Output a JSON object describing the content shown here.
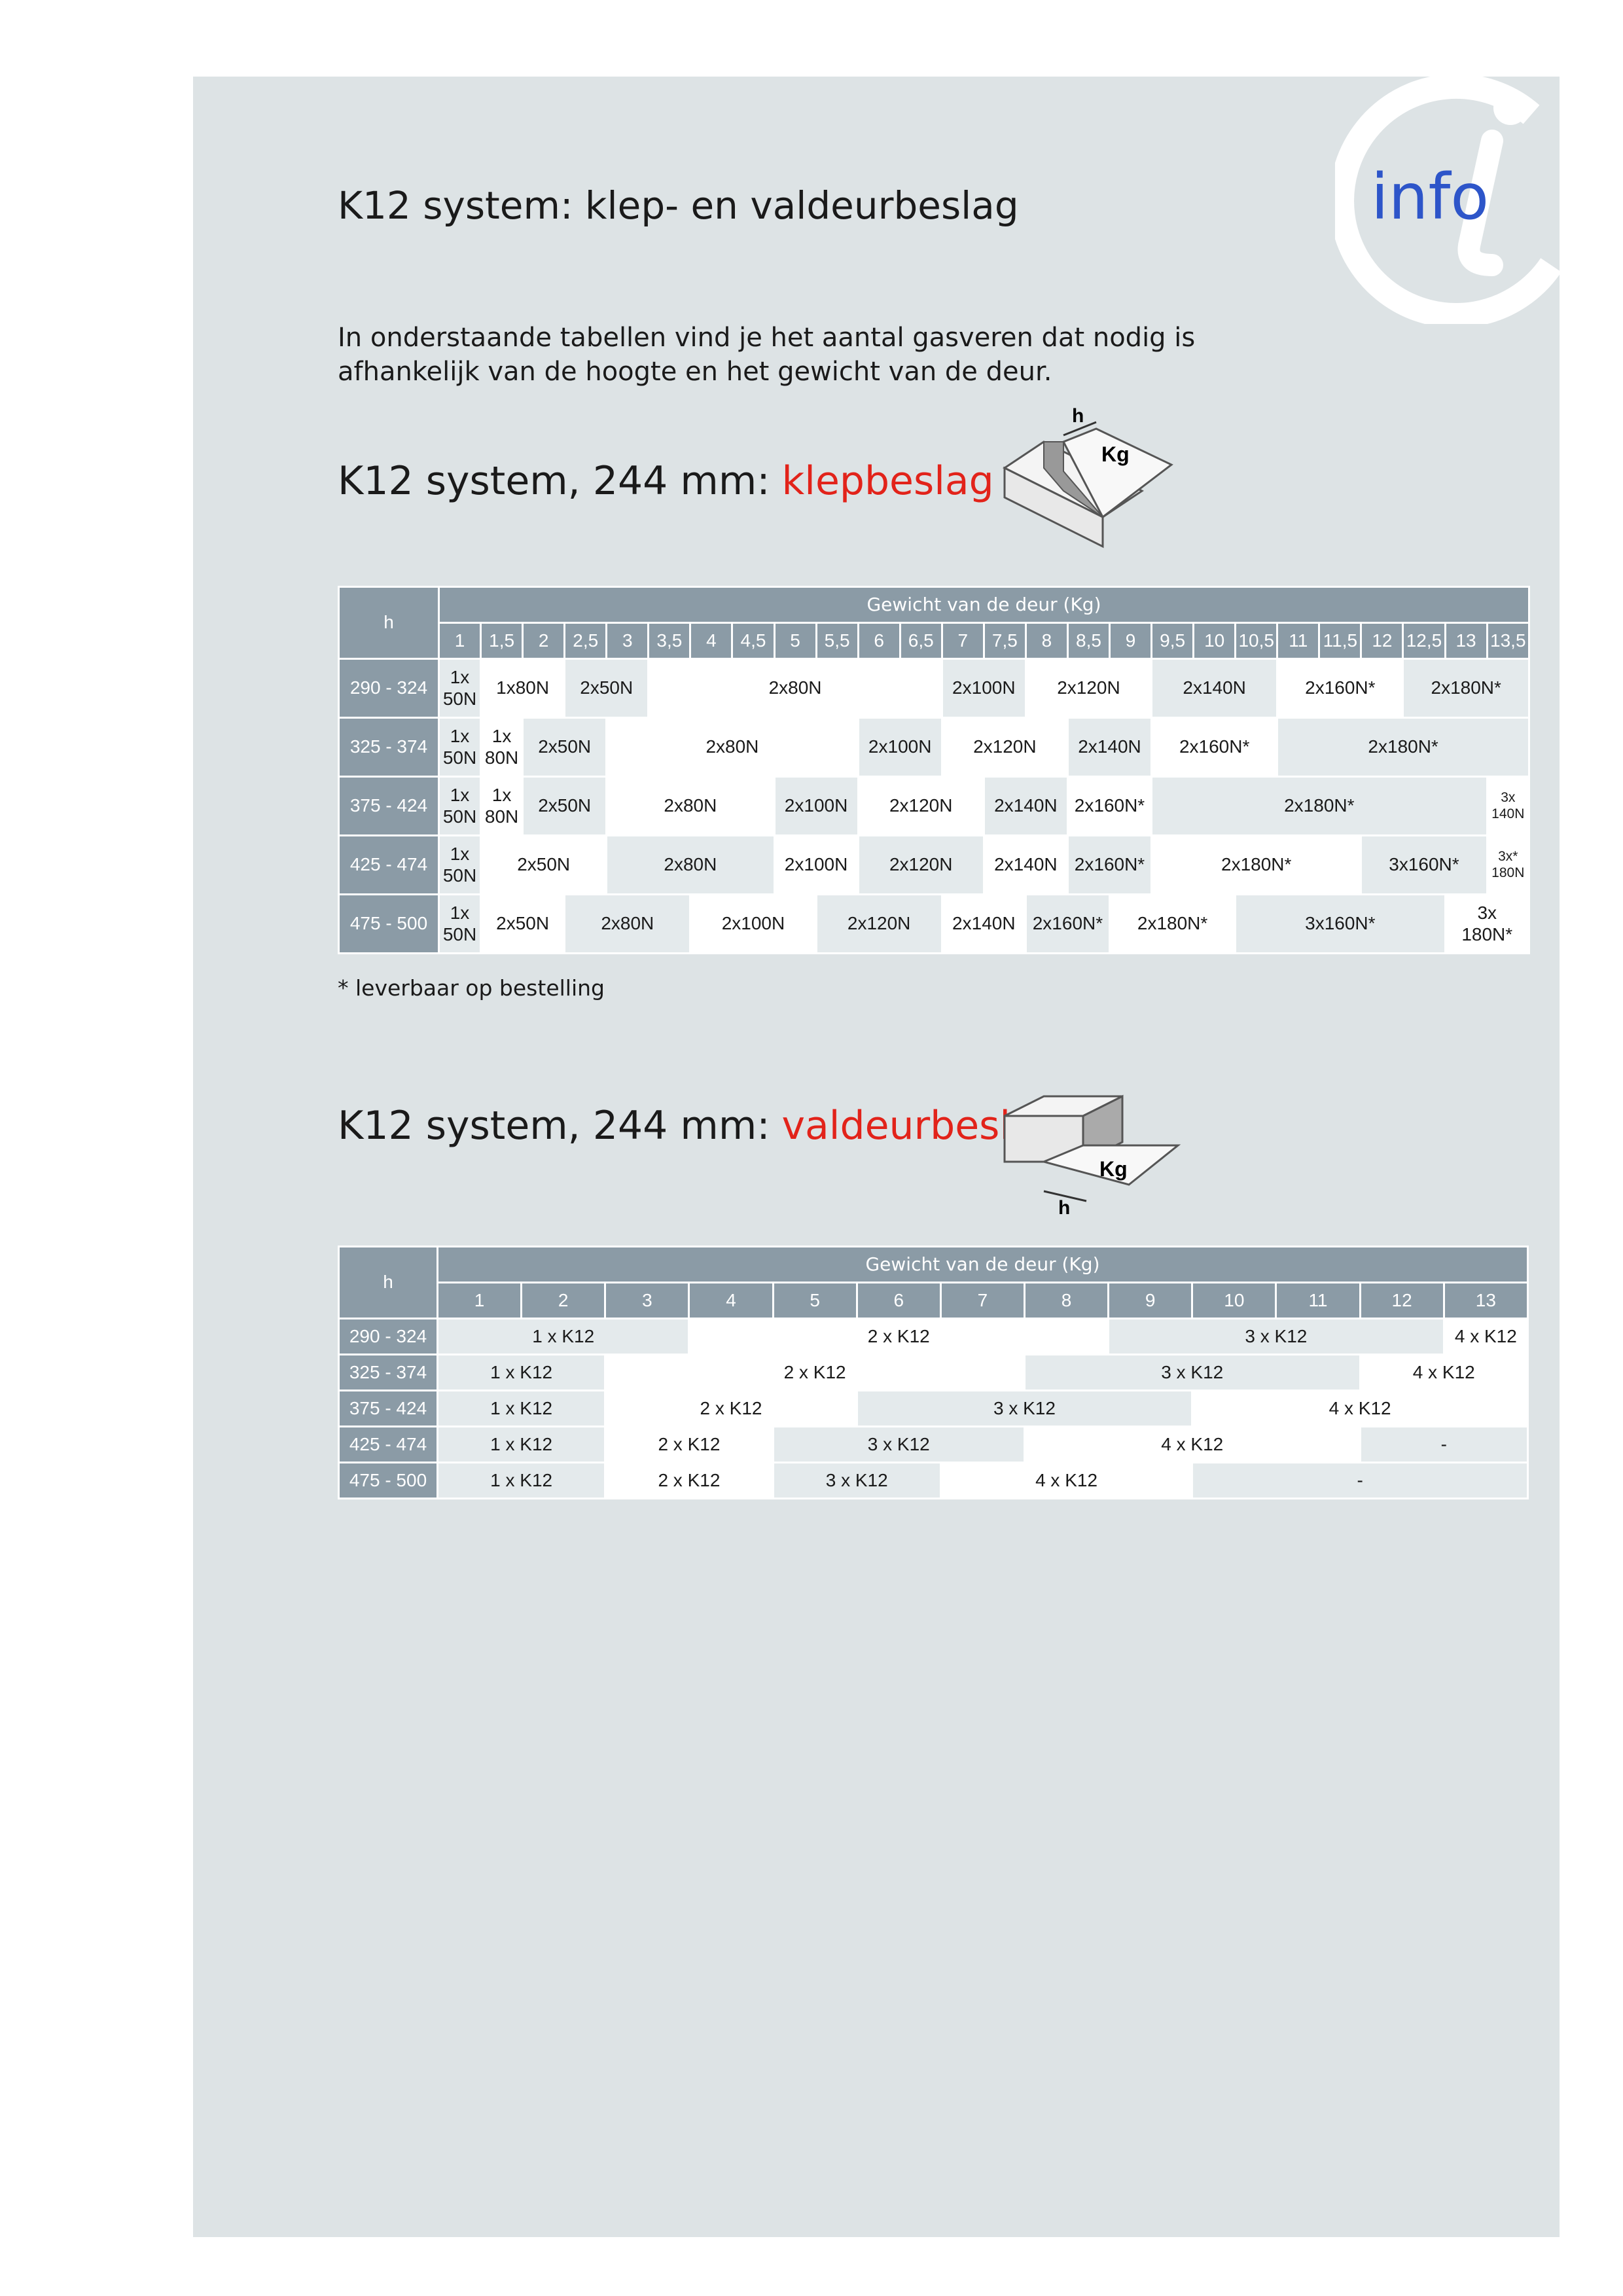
{
  "logo": "info",
  "title": "K12 system: klep- en valdeurbeslag",
  "intro": [
    "In onderstaande tabellen vind je het aantal gasveren dat nodig is",
    "afhankelijk van de hoogte en het gewicht van de deur."
  ],
  "klep": {
    "heading": "K12 system, 244 mm:",
    "heading_highlight": "klepbeslag",
    "diagram": {
      "h": "h",
      "kg": "Kg"
    },
    "table": {
      "row_header": "h",
      "group_header": "Gewicht van de deur (Kg)",
      "columns": [
        "1",
        "1,5",
        "2",
        "2,5",
        "3",
        "3,5",
        "4",
        "4,5",
        "5",
        "5,5",
        "6",
        "6,5",
        "7",
        "7,5",
        "8",
        "8,5",
        "9",
        "9,5",
        "10",
        "10,5",
        "11",
        "11,5",
        "12",
        "12,5",
        "13",
        "13,5"
      ],
      "rows": [
        {
          "label": "290 - 324",
          "cells": [
            "1x\n50N",
            "1x80N",
            "2x50N",
            "2x80N",
            "2x100N",
            "2x120N",
            "2x140N",
            "2x160N*",
            "2x180N*"
          ]
        },
        {
          "label": "325 - 374",
          "cells": [
            "1x\n50N",
            "1x\n80N",
            "2x50N",
            "2x80N",
            "2x100N",
            "2x120N",
            "2x140N",
            "2x160N*",
            "2x180N*"
          ]
        },
        {
          "label": "375 - 424",
          "cells": [
            "1x\n50N",
            "1x\n80N",
            "2x50N",
            "2x80N",
            "2x100N",
            "2x120N",
            "2x140N",
            "2x160N*",
            "2x180N*",
            "3x\n140N"
          ]
        },
        {
          "label": "425 - 474",
          "cells": [
            "1x\n50N",
            "2x50N",
            "2x80N",
            "2x100N",
            "2x120N",
            "2x140N",
            "2x160N*",
            "2x180N*",
            "3x160N*",
            "3x*\n180N"
          ]
        },
        {
          "label": "475 - 500",
          "cells": [
            "1x\n50N",
            "2x50N",
            "2x80N",
            "2x100N",
            "2x120N",
            "2x140N",
            "2x160N*",
            "2x180N*",
            "3x160N*",
            "3x\n180N*"
          ]
        }
      ]
    },
    "footnote": "* leverbaar op bestelling"
  },
  "valdeur": {
    "heading": "K12 system, 244 mm:",
    "heading_highlight": "valdeurbeslag",
    "diagram": {
      "h": "h",
      "kg": "Kg"
    },
    "table": {
      "row_header": "h",
      "group_header": "Gewicht van de deur (Kg)",
      "columns": [
        "1",
        "2",
        "3",
        "4",
        "5",
        "6",
        "7",
        "8",
        "9",
        "10",
        "11",
        "12",
        "13"
      ],
      "rows": [
        {
          "label": "290 - 324",
          "cells": [
            "1 x K12",
            "2 x K12",
            "3 x K12",
            "4 x K12"
          ]
        },
        {
          "label": "325 - 374",
          "cells": [
            "1 x K12",
            "2 x K12",
            "3 x K12",
            "4 x K12"
          ]
        },
        {
          "label": "375 - 424",
          "cells": [
            "1 x K12",
            "2 x K12",
            "3 x K12",
            "4 x K12"
          ]
        },
        {
          "label": "425 - 474",
          "cells": [
            "1 x K12",
            "2 x K12",
            "3 x K12",
            "4 x K12",
            "-"
          ]
        },
        {
          "label": "475 - 500",
          "cells": [
            "1 x K12",
            "2 x K12",
            "3 x K12",
            "4 x K12",
            "-"
          ]
        }
      ]
    }
  }
}
